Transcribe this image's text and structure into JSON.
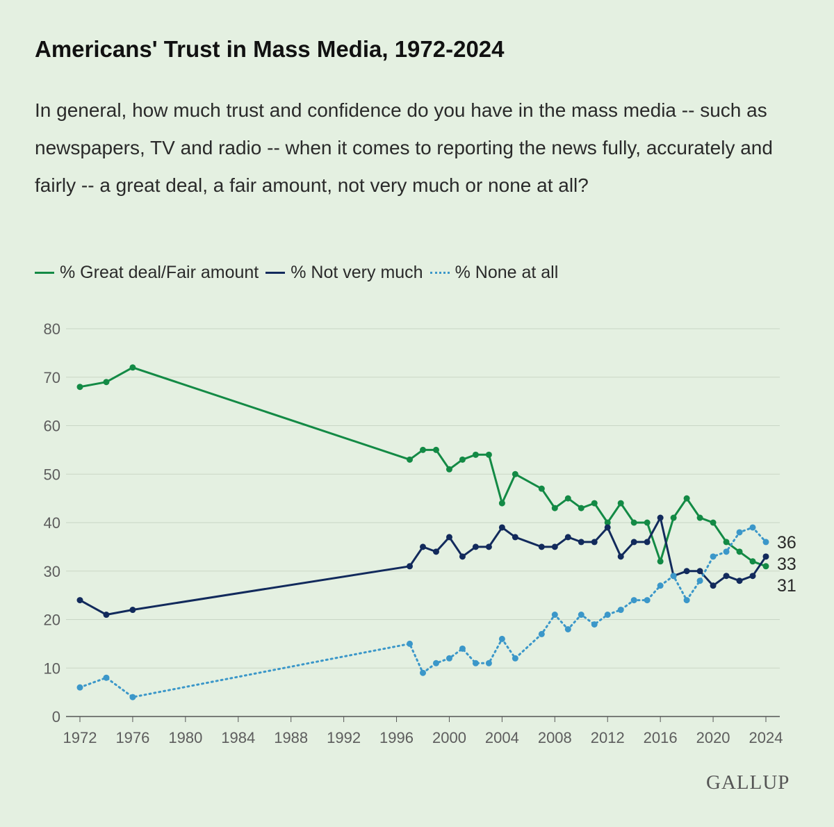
{
  "header": {
    "title": "Americans' Trust in Mass Media, 1972-2024",
    "subtitle": "In general, how much trust and confidence do you have in the mass media -- such as newspapers, TV and radio -- when it comes to reporting the news fully, accurately and fairly -- a great deal, a fair amount, not very much or none at all?"
  },
  "brand": {
    "logo_text": "GALLUP"
  },
  "chart_data": {
    "type": "line",
    "title": "Americans' Trust in Mass Media, 1972-2024",
    "xlabel": "",
    "ylabel": "",
    "xlim": [
      1972,
      2024
    ],
    "ylim": [
      0,
      80
    ],
    "y_ticks": [
      0,
      10,
      20,
      30,
      40,
      50,
      60,
      70,
      80
    ],
    "x_ticks": [
      1972,
      1976,
      1980,
      1984,
      1988,
      1992,
      1996,
      2000,
      2004,
      2008,
      2012,
      2016,
      2020,
      2024
    ],
    "grid": "horizontal",
    "legend_position": "top-left",
    "series": [
      {
        "name": "% Great deal/Fair amount",
        "color": "#138a45",
        "line_style": "solid",
        "end_label": "31",
        "points": [
          [
            1972,
            68
          ],
          [
            1974,
            69
          ],
          [
            1976,
            72
          ],
          [
            1997,
            53
          ],
          [
            1998,
            55
          ],
          [
            1999,
            55
          ],
          [
            2000,
            51
          ],
          [
            2001,
            53
          ],
          [
            2002,
            54
          ],
          [
            2003,
            54
          ],
          [
            2004,
            44
          ],
          [
            2005,
            50
          ],
          [
            2007,
            47
          ],
          [
            2008,
            43
          ],
          [
            2009,
            45
          ],
          [
            2010,
            43
          ],
          [
            2011,
            44
          ],
          [
            2012,
            40
          ],
          [
            2013,
            44
          ],
          [
            2014,
            40
          ],
          [
            2015,
            40
          ],
          [
            2016,
            32
          ],
          [
            2017,
            41
          ],
          [
            2018,
            45
          ],
          [
            2019,
            41
          ],
          [
            2020,
            40
          ],
          [
            2021,
            36
          ],
          [
            2022,
            34
          ],
          [
            2023,
            32
          ],
          [
            2024,
            31
          ]
        ]
      },
      {
        "name": "% Not very much",
        "color": "#122a5c",
        "line_style": "solid",
        "end_label": "33",
        "points": [
          [
            1972,
            24
          ],
          [
            1974,
            21
          ],
          [
            1976,
            22
          ],
          [
            1997,
            31
          ],
          [
            1998,
            35
          ],
          [
            1999,
            34
          ],
          [
            2000,
            37
          ],
          [
            2001,
            33
          ],
          [
            2002,
            35
          ],
          [
            2003,
            35
          ],
          [
            2004,
            39
          ],
          [
            2005,
            37
          ],
          [
            2007,
            35
          ],
          [
            2008,
            35
          ],
          [
            2009,
            37
          ],
          [
            2010,
            36
          ],
          [
            2011,
            36
          ],
          [
            2012,
            39
          ],
          [
            2013,
            33
          ],
          [
            2014,
            36
          ],
          [
            2015,
            36
          ],
          [
            2016,
            41
          ],
          [
            2017,
            29
          ],
          [
            2018,
            30
          ],
          [
            2019,
            30
          ],
          [
            2020,
            27
          ],
          [
            2021,
            29
          ],
          [
            2022,
            28
          ],
          [
            2023,
            29
          ],
          [
            2024,
            33
          ]
        ]
      },
      {
        "name": "% None at all",
        "color": "#3b97c9",
        "line_style": "dotted",
        "end_label": "36",
        "points": [
          [
            1972,
            6
          ],
          [
            1974,
            8
          ],
          [
            1976,
            4
          ],
          [
            1997,
            15
          ],
          [
            1998,
            9
          ],
          [
            1999,
            11
          ],
          [
            2000,
            12
          ],
          [
            2001,
            14
          ],
          [
            2002,
            11
          ],
          [
            2003,
            11
          ],
          [
            2004,
            16
          ],
          [
            2005,
            12
          ],
          [
            2007,
            17
          ],
          [
            2008,
            21
          ],
          [
            2009,
            18
          ],
          [
            2010,
            21
          ],
          [
            2011,
            19
          ],
          [
            2012,
            21
          ],
          [
            2013,
            22
          ],
          [
            2014,
            24
          ],
          [
            2015,
            24
          ],
          [
            2016,
            27
          ],
          [
            2017,
            29
          ],
          [
            2018,
            24
          ],
          [
            2019,
            28
          ],
          [
            2020,
            33
          ],
          [
            2021,
            34
          ],
          [
            2022,
            38
          ],
          [
            2023,
            39
          ],
          [
            2024,
            36
          ]
        ]
      }
    ]
  }
}
